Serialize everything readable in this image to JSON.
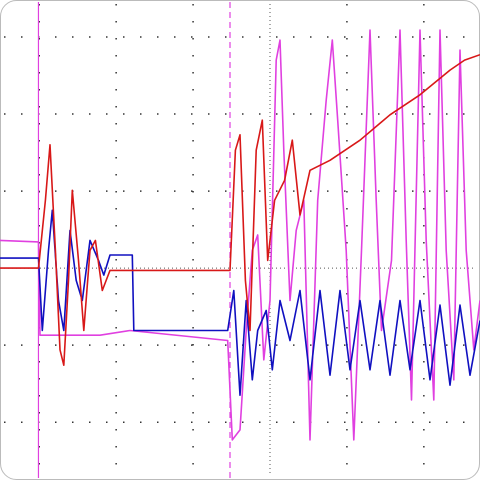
{
  "chart_data": {
    "type": "line",
    "xlim": [
      -3.51,
      2.73
    ],
    "ylim": [
      -2.75,
      3.48
    ],
    "xticks": [
      -3,
      -2,
      -1,
      0,
      1,
      2
    ],
    "yticks": [
      -2,
      -1,
      0,
      1,
      2,
      3
    ],
    "grid": true,
    "cursors": [
      -3.01,
      -0.52
    ],
    "cursor_color": "#e040e0",
    "series": [
      {
        "color": "#e040e0",
        "x": [
          -3.51,
          -3.01,
          -2.99,
          -2.21,
          -1.82,
          -0.55,
          -0.49,
          -0.39,
          -0.31,
          -0.23,
          -0.16,
          -0.08,
          0,
          0.08,
          0.13,
          0.18,
          0.26,
          0.34,
          0.44,
          0.52,
          0.62,
          0.73,
          0.81,
          0.88,
          0.99,
          1.09,
          1.19,
          1.3,
          1.38,
          1.45,
          1.58,
          1.69,
          1.77,
          1.84,
          1.95,
          2.03,
          2.13,
          2.21,
          2.29,
          2.39,
          2.47,
          2.55,
          2.65,
          2.73
        ],
        "values": [
          0.36,
          0.34,
          -0.87,
          -0.87,
          -0.81,
          -0.94,
          -2.23,
          -2.1,
          -0.81,
          0.23,
          0.43,
          -1.19,
          -0.42,
          2.7,
          2.96,
          1.53,
          -0.42,
          0.49,
          0.88,
          -2.23,
          0.88,
          2.18,
          2.96,
          1.92,
          0.23,
          -2.23,
          0.23,
          3.09,
          0.88,
          -0.81,
          0.1,
          3.09,
          0.36,
          -1.71,
          3.09,
          0.36,
          -1.71,
          3.09,
          0.23,
          -1.45,
          2.83,
          0.23,
          -1.06,
          -0.42
        ]
      },
      {
        "color": "#1010c0",
        "x": [
          -3.51,
          -3.01,
          -2.96,
          -2.88,
          -2.83,
          -2.75,
          -2.68,
          -2.6,
          -2.52,
          -2.44,
          -2.34,
          -2.23,
          -2.16,
          -2.08,
          -1.79,
          -1.77,
          -0.55,
          -0.47,
          -0.39,
          -0.31,
          -0.23,
          -0.16,
          -0.05,
          0.03,
          0.13,
          0.26,
          0.39,
          0.52,
          0.65,
          0.78,
          0.91,
          1.04,
          1.17,
          1.3,
          1.43,
          1.56,
          1.69,
          1.82,
          1.95,
          2.08,
          2.21,
          2.34,
          2.47,
          2.6,
          2.73
        ],
        "values": [
          0.13,
          0.13,
          -0.81,
          0.23,
          0.75,
          -0.42,
          -0.81,
          0.49,
          -0.16,
          -0.42,
          0.36,
          0.1,
          -0.09,
          0.17,
          0.17,
          -0.81,
          -0.81,
          -0.29,
          -1.65,
          -0.42,
          -1.45,
          -0.81,
          -0.55,
          -1.32,
          -0.42,
          -0.94,
          -0.29,
          -1.45,
          -0.29,
          -1.39,
          -0.29,
          -1.32,
          -0.42,
          -1.32,
          -0.42,
          -1.39,
          -0.42,
          -1.32,
          -0.42,
          -1.45,
          -0.48,
          -1.52,
          -0.48,
          -1.39,
          -0.68
        ]
      },
      {
        "color": "#d81818",
        "x": [
          -3.51,
          -3.01,
          -2.92,
          -2.86,
          -2.79,
          -2.73,
          -2.68,
          -2.62,
          -2.57,
          -2.49,
          -2.42,
          -2.34,
          -2.27,
          -2.18,
          -2.08,
          -0.52,
          -0.45,
          -0.39,
          -0.32,
          -0.26,
          -0.18,
          -0.1,
          -0.03,
          0.06,
          0.19,
          0.29,
          0.39,
          0.52,
          0.78,
          1.17,
          1.56,
          1.95,
          2.34,
          2.53,
          2.73
        ],
        "values": [
          0,
          0,
          0.88,
          1.6,
          0.23,
          -1.06,
          -1.26,
          -0.16,
          1.01,
          0.1,
          -0.81,
          0.23,
          0.36,
          -0.29,
          -0.03,
          -0.03,
          1.53,
          1.73,
          -0.16,
          -0.81,
          1.53,
          1.92,
          0.1,
          0.88,
          1.14,
          1.66,
          0.69,
          1.27,
          1.4,
          1.66,
          1.99,
          2.25,
          2.57,
          2.7,
          2.77
        ]
      }
    ]
  }
}
